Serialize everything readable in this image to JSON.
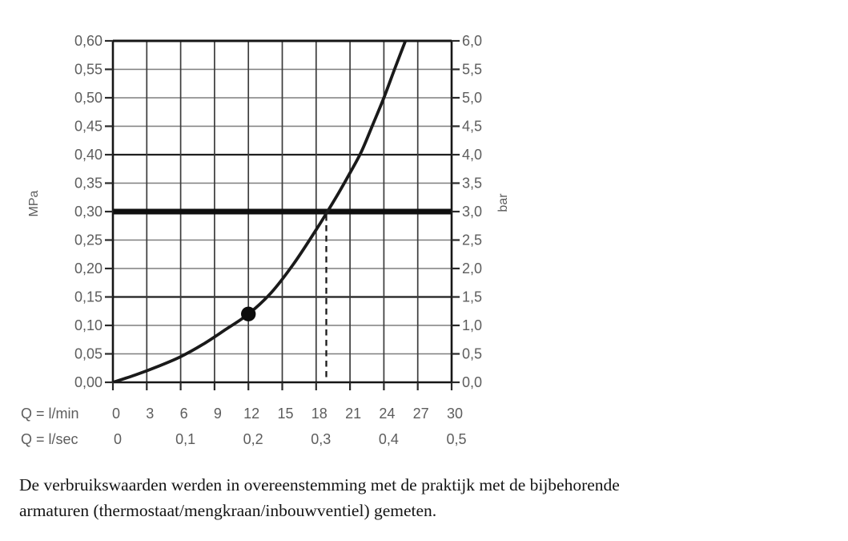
{
  "chart_data": {
    "type": "line",
    "title": "",
    "left_axis": {
      "label": "MPa",
      "min": 0,
      "max": 0.6,
      "step": 0.05,
      "tick_labels_top_to_bottom": [
        "0,60",
        "0,55",
        "0,50",
        "0,45",
        "0,40",
        "0,35",
        "0,30",
        "0,25",
        "0,20",
        "0,15",
        "0,10",
        "0,05",
        "0,00"
      ]
    },
    "right_axis": {
      "label": "bar",
      "min": 0,
      "max": 6,
      "step": 0.5,
      "tick_labels_top_to_bottom": [
        "6,0",
        "5,5",
        "5,0",
        "4,5",
        "4,0",
        "3,5",
        "3,0",
        "2,5",
        "2,0",
        "1,5",
        "1,0",
        "0,5",
        "0,0"
      ]
    },
    "x_axis_lmin": {
      "label": "Q = l/min",
      "min": 0,
      "max": 30,
      "step": 3,
      "tick_labels": [
        "0",
        "3",
        "6",
        "9",
        "12",
        "15",
        "18",
        "21",
        "24",
        "27",
        "30"
      ]
    },
    "x_axis_lsec": {
      "label": "Q = l/sec",
      "ticks": [
        {
          "q": 0,
          "label": "0"
        },
        {
          "q": 6,
          "label": "0,1"
        },
        {
          "q": 12,
          "label": "0,2"
        },
        {
          "q": 18,
          "label": "0,3"
        },
        {
          "q": 24,
          "label": "0,4"
        },
        {
          "q": 30,
          "label": "0,5"
        }
      ]
    },
    "series": [
      {
        "name": "flow-pressure-curve",
        "points_q_mpa": [
          [
            0,
            0
          ],
          [
            2,
            0.013
          ],
          [
            4,
            0.028
          ],
          [
            6,
            0.045
          ],
          [
            8,
            0.067
          ],
          [
            10,
            0.093
          ],
          [
            12,
            0.12
          ],
          [
            14,
            0.157
          ],
          [
            16,
            0.208
          ],
          [
            18,
            0.268
          ],
          [
            19,
            0.3
          ],
          [
            20,
            0.333
          ],
          [
            21,
            0.368
          ],
          [
            22,
            0.405
          ],
          [
            23,
            0.452
          ],
          [
            24,
            0.5
          ],
          [
            25,
            0.553
          ],
          [
            26.2,
            0.615
          ]
        ]
      }
    ],
    "marker_point": {
      "q": 12,
      "mpa": 0.12
    },
    "highlight_line_mpa": 0.3,
    "drop_line_q": 18.9,
    "grid": true,
    "legend": "none"
  },
  "footnote": {
    "lines": [
      "De verbruikswaarden werden in overeenstemming met de praktijk met de bijbehorende",
      "armaturen (thermostaat/mengkraan/inbouwventiel) gemeten."
    ]
  },
  "colors": {
    "curve": "#1a1a1a",
    "marker": "#0d0d0d",
    "highlight_band": "#0f0f0f",
    "drop_line": "#1a1a1a",
    "grid_light": "#7e7e7e",
    "grid_dark": "#1f1f1f",
    "grid_vertical": "#3c3c3c",
    "border": "#161616",
    "tick": "#2a2a2a",
    "axis_text": "#5d5d5d",
    "footnote_text": "#141414",
    "background": "#ffffff"
  }
}
